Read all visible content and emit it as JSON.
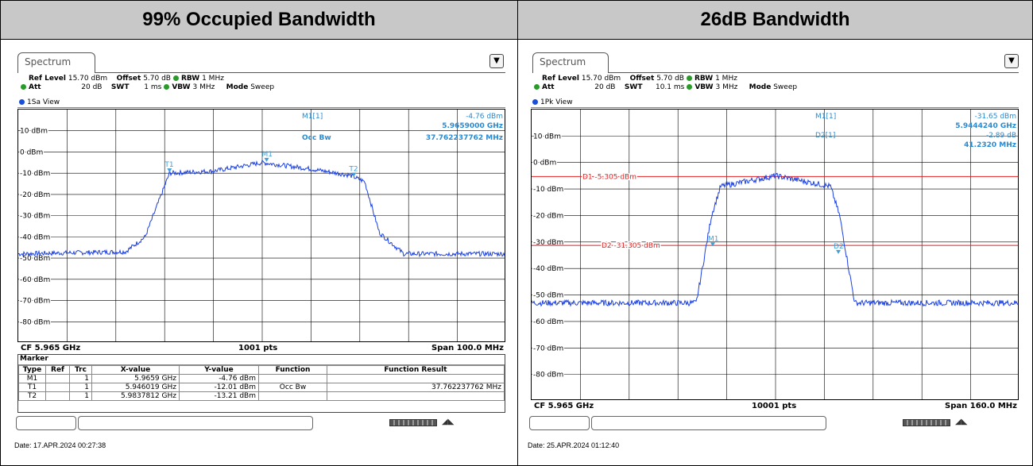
{
  "left": {
    "heading": "99% Occupied Bandwidth",
    "tab": "Spectrum",
    "info1": {
      "ref_level_lbl": "Ref Level",
      "ref_level": "15.70 dBm",
      "offset_lbl": "Offset",
      "offset": "5.70 dB",
      "rbw_lbl": "RBW",
      "rbw": "1 MHz"
    },
    "info2": {
      "att_lbl": "Att",
      "att": "20 dB",
      "swt_lbl": "SWT",
      "swt": "1 ms",
      "vbw_lbl": "VBW",
      "vbw": "3 MHz",
      "mode_lbl": "Mode",
      "mode": "Sweep"
    },
    "view": "1Sa View",
    "ylabels": [
      "10 dBm",
      "0 dBm",
      "-10 dBm",
      "-20 dBm",
      "-30 dBm",
      "-40 dBm",
      "-50 dBm",
      "-60 dBm",
      "-70 dBm",
      "-80 dBm"
    ],
    "readout": {
      "m1_lbl": "M1[1]",
      "m1_val": "-4.76 dBm",
      "m1_freq": "5.9659000 GHz",
      "occ_lbl": "Occ Bw",
      "occ_val": "37.762237762 MHz"
    },
    "markers": {
      "t1": "T1",
      "t2": "T2",
      "m1": "M1"
    },
    "footer": {
      "cf": "CF 5.965 GHz",
      "pts": "1001 pts",
      "span": "Span 100.0 MHz"
    },
    "table": {
      "title": "Marker",
      "headers": [
        "Type",
        "Ref",
        "Trc",
        "X-value",
        "Y-value",
        "Function",
        "Function Result"
      ],
      "rows": [
        [
          "M1",
          "",
          "1",
          "5.9659 GHz",
          "-4.76 dBm",
          "",
          ""
        ],
        [
          "T1",
          "",
          "1",
          "5.946019 GHz",
          "-12.01 dBm",
          "Occ Bw",
          "37.762237762 MHz"
        ],
        [
          "T2",
          "",
          "1",
          "5.9837812 GHz",
          "-13.21 dBm",
          "",
          ""
        ]
      ]
    },
    "date": "Date: 17.APR.2024  00:27:38"
  },
  "right": {
    "heading": "26dB Bandwidth",
    "tab": "Spectrum",
    "info1": {
      "ref_level_lbl": "Ref Level",
      "ref_level": "15.70 dBm",
      "offset_lbl": "Offset",
      "offset": "5.70 dB",
      "rbw_lbl": "RBW",
      "rbw": "1 MHz"
    },
    "info2": {
      "att_lbl": "Att",
      "att": "20 dB",
      "swt_lbl": "SWT",
      "swt": "10.1 ms",
      "vbw_lbl": "VBW",
      "vbw": "3 MHz",
      "mode_lbl": "Mode",
      "mode": "Sweep"
    },
    "view": "1Pk View",
    "ylabels": [
      "10 dBm",
      "0 dBm",
      "-10 dBm",
      "-20 dBm",
      "-30 dBm",
      "-40 dBm",
      "-50 dBm",
      "-60 dBm",
      "-70 dBm",
      "-80 dBm"
    ],
    "readout": {
      "m1_lbl": "M1[1]",
      "m1_val": "-31.65 dBm",
      "m1_freq": "5.9444240 GHz",
      "d2_lbl": "D2[1]",
      "d2_val": "-2.89 dB",
      "d2_freq": "41.2320 MHz"
    },
    "d1_line": "D1  -5.305 dBm",
    "d2_line": "D2  -31.305 dBm",
    "markers": {
      "m1": "M1",
      "d2": "D2"
    },
    "footer": {
      "cf": "CF 5.965 GHz",
      "pts": "10001 pts",
      "span": "Span 160.0 MHz"
    },
    "date": "Date: 25.APR.2024  01:12:40"
  },
  "colors": {
    "trace": "#1a3fe0",
    "marker": "#3fa0d8",
    "display_line": "#e02020",
    "header_bg": "#c8c8c8"
  },
  "chart_data": [
    {
      "type": "line",
      "title": "",
      "xlabel": "",
      "ylabel": "",
      "x_center_ghz": 5.965,
      "span_mhz": 100.0,
      "ylim": [
        -90,
        20
      ],
      "series": [
        {
          "values_x_mhz": [
            -50,
            -28,
            -24,
            -19,
            -10,
            0,
            10,
            18,
            21,
            24,
            29,
            50
          ],
          "values_y_dbm": [
            -48,
            -47,
            -40,
            -10,
            -9,
            -5,
            -8,
            -11,
            -14,
            -38,
            -48,
            -48
          ]
        }
      ]
    },
    {
      "type": "line",
      "title": "",
      "xlabel": "",
      "ylabel": "",
      "x_center_ghz": 5.965,
      "span_mhz": 160.0,
      "ylim": [
        -90,
        20
      ],
      "series": [
        {
          "values_x_mhz": [
            -80,
            -26,
            -24,
            -21,
            -18,
            0,
            18,
            21,
            24,
            26,
            80
          ],
          "values_y_dbm": [
            -53,
            -53,
            -40,
            -20,
            -9,
            -5,
            -9,
            -20,
            -40,
            -53,
            -53
          ]
        }
      ]
    }
  ]
}
